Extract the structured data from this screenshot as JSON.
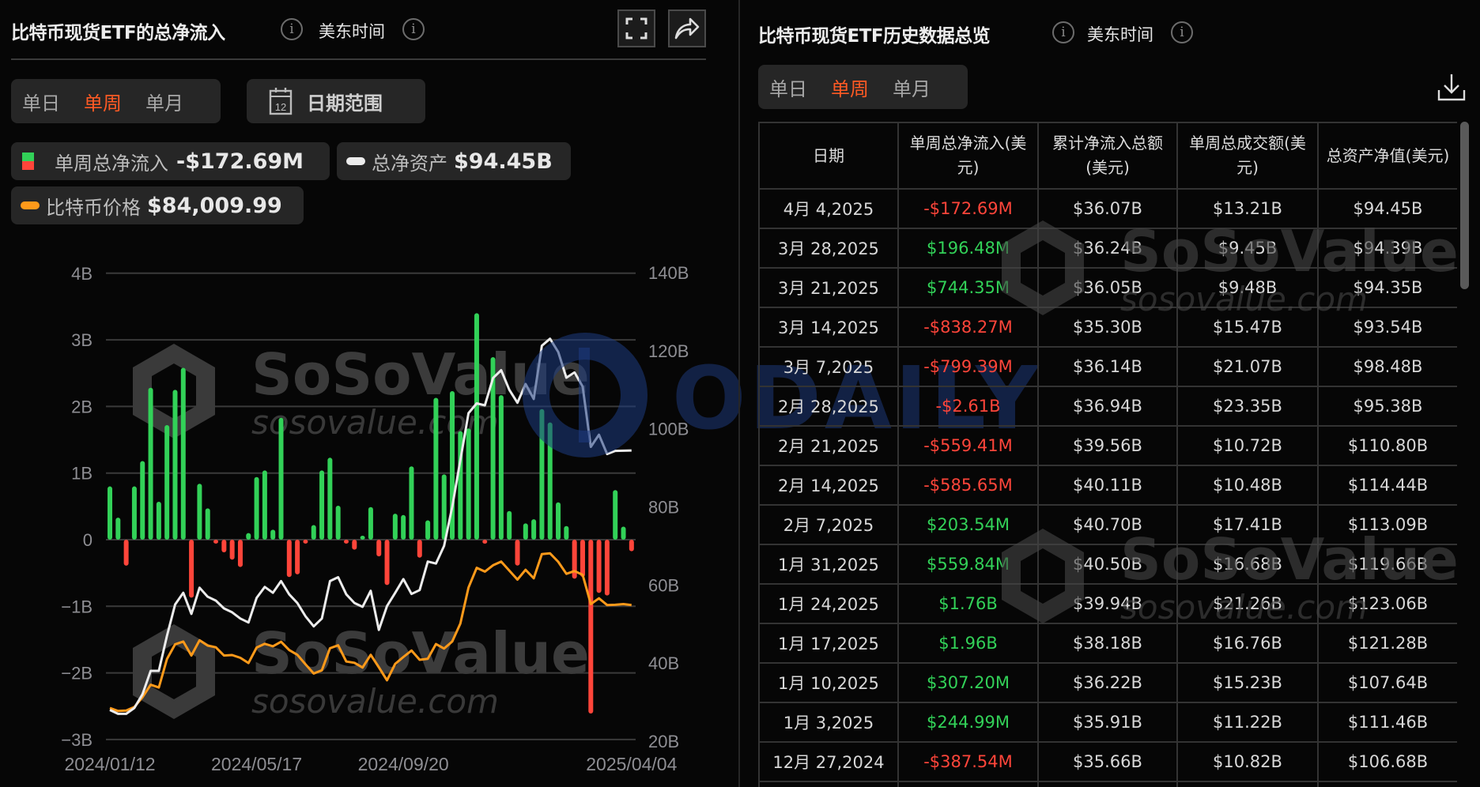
{
  "left_panel": {
    "title": "比特币现货ETF的总净流入",
    "timezone": "美东时间",
    "tabs": [
      "单日",
      "单周",
      "单月"
    ],
    "active_tab": "单周",
    "date_range_label": "日期范围",
    "calendar_day": "12",
    "legend": [
      {
        "label": "单周总净流入",
        "value": "-$172.69M"
      },
      {
        "label": "总净资产",
        "value": "$94.45B"
      },
      {
        "label": "比特币价格",
        "value": "$84,009.99"
      }
    ]
  },
  "right_panel": {
    "title": "比特币现货ETF历史数据总览",
    "timezone": "美东时间",
    "tabs": [
      "单日",
      "单周",
      "单月"
    ],
    "active_tab": "单周",
    "table": {
      "headers": [
        "日期",
        "单周总净流入(美元)",
        "累计净流入总额(美元)",
        "单周总成交额(美元)",
        "总资产净值(美元)"
      ],
      "rows": [
        [
          "4月 4,2025",
          "-$172.69M",
          "$36.07B",
          "$13.21B",
          "$94.45B"
        ],
        [
          "3月 28,2025",
          "$196.48M",
          "$36.24B",
          "$9.45B",
          "$94.39B"
        ],
        [
          "3月 21,2025",
          "$744.35M",
          "$36.05B",
          "$9.48B",
          "$94.35B"
        ],
        [
          "3月 14,2025",
          "-$838.27M",
          "$35.30B",
          "$15.47B",
          "$93.54B"
        ],
        [
          "3月 7,2025",
          "-$799.39M",
          "$36.14B",
          "$21.07B",
          "$98.48B"
        ],
        [
          "2月 28,2025",
          "-$2.61B",
          "$36.94B",
          "$23.35B",
          "$95.38B"
        ],
        [
          "2月 21,2025",
          "-$559.41M",
          "$39.56B",
          "$10.72B",
          "$110.80B"
        ],
        [
          "2月 14,2025",
          "-$585.65M",
          "$40.11B",
          "$10.48B",
          "$114.44B"
        ],
        [
          "2月 7,2025",
          "$203.54M",
          "$40.70B",
          "$17.41B",
          "$113.09B"
        ],
        [
          "1月 31,2025",
          "$559.84M",
          "$40.50B",
          "$16.68B",
          "$119.66B"
        ],
        [
          "1月 24,2025",
          "$1.76B",
          "$39.94B",
          "$21.26B",
          "$123.06B"
        ],
        [
          "1月 17,2025",
          "$1.96B",
          "$38.18B",
          "$16.76B",
          "$121.28B"
        ],
        [
          "1月 10,2025",
          "$307.20M",
          "$36.22B",
          "$15.23B",
          "$107.64B"
        ],
        [
          "1月 3,2025",
          "$244.99M",
          "$35.91B",
          "$11.22B",
          "$111.46B"
        ],
        [
          "12月 27,2024",
          "-$387.54M",
          "$35.66B",
          "$10.82B",
          "$106.68B"
        ]
      ]
    }
  },
  "watermarks": {
    "brand": "SoSoValue",
    "site": "sosovalue.com",
    "odaily": "ODAILY"
  },
  "colors": {
    "background": "#060606",
    "inflow": "#32d158",
    "outflow": "#ff453a",
    "net_assets": "#ececec",
    "btc_price": "#ff9a1a",
    "active_tab": "#ff5a24"
  },
  "chart_data": {
    "type": "bar+line",
    "x_tick_labels": [
      "2024/01/12",
      "2024/05/17",
      "2024/09/20",
      "2025/04/04"
    ],
    "x_tick_index": [
      0,
      18,
      36,
      64
    ],
    "left_axis": {
      "ticks": [
        "4B",
        "3B",
        "2B",
        "1B",
        "0",
        "−1B",
        "−2B",
        "−3B"
      ],
      "range": [
        -3,
        4
      ],
      "unit": "B USD"
    },
    "right_axis": {
      "ticks": [
        "140B",
        "120B",
        "100B",
        "80B",
        "60B",
        "40B",
        "20B"
      ],
      "range": [
        20,
        140
      ],
      "unit": "B USD"
    },
    "grid": true,
    "series": [
      {
        "name": "单周总净流入",
        "type": "bar",
        "axis": "left",
        "values": [
          0.8,
          0.33,
          -0.39,
          0.8,
          1.18,
          2.28,
          0.57,
          1.72,
          2.25,
          2.58,
          -0.87,
          0.84,
          0.47,
          -0.04,
          -0.19,
          -0.3,
          -0.41,
          0.1,
          0.94,
          1.04,
          0.15,
          1.83,
          -0.56,
          -0.52,
          -0.02,
          0.22,
          1.04,
          1.23,
          0.51,
          -0.05,
          -0.15,
          0.02,
          0.49,
          -0.25,
          -0.68,
          0.39,
          0.37,
          1.1,
          -0.27,
          0.29,
          2.13,
          0.98,
          2.23,
          1.63,
          1.67,
          3.4,
          -0.06,
          2.74,
          2.17,
          0.43,
          -0.388,
          0.245,
          0.307,
          1.96,
          1.76,
          0.56,
          0.204,
          -0.586,
          -0.559,
          -2.61,
          -0.799,
          -0.838,
          0.744,
          0.196,
          -0.173
        ]
      },
      {
        "name": "总净资产",
        "type": "line",
        "axis": "right",
        "values": [
          28,
          27,
          27,
          28.5,
          32,
          38,
          38,
          47,
          55,
          58,
          52.6,
          59.3,
          57,
          56,
          54,
          53,
          51.4,
          50.4,
          56.7,
          59.5,
          58,
          61,
          57.6,
          55.4,
          52,
          49.4,
          51.4,
          61,
          62,
          57.6,
          55.4,
          54.4,
          58.5,
          48.5,
          54.6,
          58,
          61.5,
          57.7,
          58.7,
          66,
          65.5,
          70,
          80,
          92,
          104,
          106.5,
          106,
          113,
          115,
          110,
          106.68,
          111.46,
          107.64,
          121.28,
          123.06,
          119.66,
          113.09,
          114.44,
          110.8,
          95.38,
          98.48,
          93.54,
          94.35,
          94.39,
          94.45
        ]
      },
      {
        "name": "比特币价格",
        "type": "line",
        "axis": "hidden",
        "values": [
          42800,
          41600,
          41800,
          43200,
          47100,
          52100,
          51000,
          62400,
          68300,
          69400,
          63800,
          69900,
          67800,
          67100,
          63800,
          64000,
          62900,
          60800,
          67000,
          68500,
          67500,
          69300,
          66000,
          64100,
          60300,
          56600,
          57900,
          66700,
          67900,
          61400,
          60900,
          59000,
          64100,
          59100,
          53900,
          60500,
          63200,
          65800,
          62100,
          62500,
          68400,
          66600,
          69400,
          76600,
          91000,
          98900,
          97400,
          99900,
          101400,
          97800,
          94200,
          98100,
          94700,
          104400,
          104700,
          101300,
          96500,
          97600,
          96100,
          84400,
          86700,
          84000,
          84100,
          84400,
          84009.99
        ]
      }
    ]
  }
}
